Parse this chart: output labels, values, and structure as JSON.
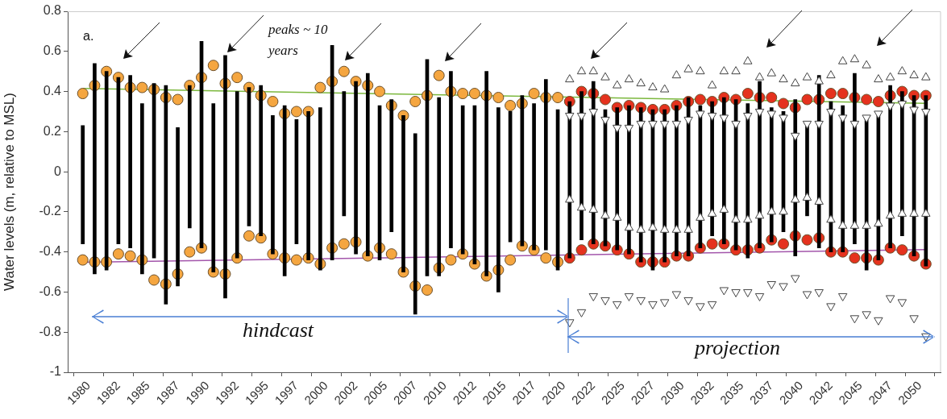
{
  "chart_data": {
    "type": "scatter",
    "ylabel": "Water levels (m, relative to MSL)",
    "annotations": [
      "a.",
      "peaks ~ 10 years",
      "hindcast",
      "projection"
    ],
    "x": [
      1979.5,
      1980.5,
      1981.5,
      1982.5,
      1983.5,
      1984.5,
      1985.5,
      1986.5,
      1987.5,
      1988.5,
      1989.5,
      1990.5,
      1991.5,
      1992.5,
      1993.5,
      1994.5,
      1995.5,
      1996.5,
      1997.5,
      1998.5,
      1999.5,
      2000.5,
      2001.5,
      2002.5,
      2003.5,
      2004.5,
      2005.5,
      2006.5,
      2007.5,
      2008.5,
      2009.5,
      2010.5,
      2011.5,
      2012.5,
      2013.5,
      2014.5,
      2015.5,
      2016.5,
      2017.5,
      2018.5,
      2019.5,
      2020.5,
      2021.5,
      2022.5,
      2023.5,
      2024.5,
      2025.5,
      2026.5,
      2027.5,
      2028.5,
      2029.5,
      2030.5,
      2031.5,
      2032.5,
      2033.5,
      2034.5,
      2035.5,
      2036.5,
      2037.5,
      2038.5,
      2039.5,
      2040.5,
      2041.5,
      2042.5,
      2043.5,
      2044.5,
      2045.5,
      2046.5,
      2047.5,
      2048.5,
      2049.5,
      2050.5
    ],
    "xlim": [
      1979.5,
      2050.5
    ],
    "xticks": [
      1980,
      {
        "value": 1982.5,
        "label": "1982"
      },
      1985,
      {
        "value": 1987.5,
        "label": "1987"
      },
      1990,
      {
        "value": 1992.5,
        "label": "1992"
      },
      1995,
      {
        "value": 1997.5,
        "label": "1997"
      },
      2000,
      {
        "value": 2002.5,
        "label": "2002"
      },
      2005,
      {
        "value": 2007.5,
        "label": "2007"
      },
      2010,
      {
        "value": 2012.5,
        "label": "2012"
      },
      2015,
      {
        "value": 2017.5,
        "label": "2017"
      },
      2020,
      {
        "value": 2022.5,
        "label": "2022"
      },
      2025,
      {
        "value": 2027.5,
        "label": "2027"
      },
      2030,
      {
        "value": 2032.5,
        "label": "2032"
      },
      2035,
      {
        "value": 2037.5,
        "label": "2037"
      },
      2040,
      {
        "value": 2042.5,
        "label": "2042"
      },
      2045,
      {
        "value": 2047.5,
        "label": "2047"
      },
      2050
    ],
    "ylim": [
      -1,
      0.8
    ],
    "yticks": [
      -1,
      -0.8,
      -0.6,
      -0.4,
      -0.2,
      0,
      0.2,
      0.4,
      0.6,
      0.8
    ],
    "grid": false,
    "legend": false,
    "series": [
      {
        "type": "bar",
        "color": "#000000",
        "base": [
          -0.36,
          -0.51,
          -0.49,
          -0.36,
          -0.38,
          -0.51,
          -0.43,
          -0.66,
          -0.57,
          -0.28,
          -0.38,
          -0.5,
          -0.63,
          -0.43,
          -0.27,
          -0.32,
          -0.41,
          -0.52,
          -0.36,
          -0.44,
          -0.49,
          -0.44,
          -0.22,
          -0.41,
          -0.42,
          -0.44,
          -0.3,
          -0.5,
          -0.71,
          -0.52,
          -0.52,
          -0.38,
          -0.41,
          -0.46,
          -0.52,
          -0.6,
          -0.35,
          -0.37,
          -0.39,
          -0.39,
          -0.49,
          -0.43,
          -0.34,
          -0.36,
          -0.37,
          -0.39,
          -0.41,
          -0.45,
          -0.49,
          -0.45,
          -0.42,
          -0.42,
          -0.38,
          -0.32,
          -0.36,
          -0.39,
          -0.43,
          -0.38,
          -0.35,
          -0.3,
          -0.42,
          -0.22,
          -0.38,
          -0.4,
          -0.4,
          -0.36,
          -0.49,
          -0.44,
          -0.38,
          -0.32,
          -0.42,
          -0.47
        ],
        "values": [
          0.59,
          1.05,
          0.99,
          0.83,
          0.86,
          0.85,
          0.87,
          1.09,
          0.79,
          0.71,
          1.03,
          0.84,
          1.21,
          0.83,
          0.69,
          0.75,
          0.69,
          0.85,
          0.62,
          0.74,
          0.81,
          1.07,
          0.62,
          0.86,
          0.91,
          0.77,
          0.66,
          0.78,
          0.9,
          1.08,
          0.89,
          0.88,
          0.74,
          0.79,
          1.02,
          0.92,
          0.65,
          0.75,
          0.73,
          0.85,
          0.8,
          0.78,
          0.74,
          0.81,
          0.68,
          0.71,
          0.74,
          0.77,
          0.8,
          0.76,
          0.75,
          0.79,
          0.71,
          0.67,
          0.73,
          0.75,
          0.77,
          0.83,
          0.67,
          0.6,
          0.78,
          0.46,
          0.86,
          0.75,
          0.73,
          0.85,
          0.77,
          0.73,
          0.81,
          0.72,
          0.8,
          0.85
        ]
      },
      {
        "type": "line",
        "color": "#7cb83e",
        "marker": "none",
        "x": [
          1979.5,
          2050.5
        ],
        "values": [
          0.415,
          0.341
        ]
      },
      {
        "type": "line",
        "color": "#a356ab",
        "marker": "none",
        "x": [
          1979.5,
          2050.5
        ],
        "values": [
          -0.452,
          -0.388
        ]
      },
      {
        "color": "#f5a640",
        "marker": "circle",
        "x": [
          1979.5,
          1980.5,
          1981.5,
          1982.5,
          1983.5,
          1984.5,
          1985.5,
          1986.5,
          1987.5,
          1988.5,
          1989.5,
          1990.5,
          1991.5,
          1992.5,
          1993.5,
          1994.5,
          1995.5,
          1996.5,
          1997.5,
          1998.5,
          1999.5,
          2000.5,
          2001.5,
          2002.5,
          2003.5,
          2004.5,
          2005.5,
          2006.5,
          2007.5,
          2008.5,
          2009.5,
          2010.5,
          2011.5,
          2012.5,
          2013.5,
          2014.5,
          2015.5,
          2016.5,
          2017.5,
          2018.5,
          2019.5
        ],
        "values": [
          0.39,
          0.43,
          0.5,
          0.47,
          0.42,
          0.42,
          0.41,
          0.37,
          0.36,
          0.43,
          0.47,
          0.53,
          0.44,
          0.47,
          0.42,
          0.38,
          0.35,
          0.29,
          0.3,
          0.3,
          0.42,
          0.45,
          0.5,
          0.45,
          0.43,
          0.4,
          0.33,
          0.28,
          0.35,
          0.38,
          0.48,
          0.4,
          0.39,
          0.39,
          0.38,
          0.37,
          0.33,
          0.34,
          0.39,
          0.37,
          0.37
        ]
      },
      {
        "color": "#f5a640",
        "marker": "circle",
        "x": [
          1979.5,
          1980.5,
          1981.5,
          1982.5,
          1983.5,
          1984.5,
          1985.5,
          1986.5,
          1987.5,
          1988.5,
          1989.5,
          1990.5,
          1991.5,
          1992.5,
          1993.5,
          1994.5,
          1995.5,
          1996.5,
          1997.5,
          1998.5,
          1999.5,
          2000.5,
          2001.5,
          2002.5,
          2003.5,
          2004.5,
          2005.5,
          2006.5,
          2007.5,
          2008.5,
          2009.5,
          2010.5,
          2011.5,
          2012.5,
          2013.5,
          2014.5,
          2015.5,
          2016.5,
          2017.5,
          2018.5,
          2019.5
        ],
        "values": [
          -0.44,
          -0.45,
          -0.45,
          -0.41,
          -0.42,
          -0.44,
          -0.54,
          -0.56,
          -0.51,
          -0.4,
          -0.38,
          -0.5,
          -0.51,
          -0.43,
          -0.32,
          -0.33,
          -0.41,
          -0.43,
          -0.44,
          -0.43,
          -0.46,
          -0.38,
          -0.36,
          -0.35,
          -0.42,
          -0.38,
          -0.41,
          -0.5,
          -0.57,
          -0.59,
          -0.48,
          -0.44,
          -0.41,
          -0.46,
          -0.52,
          -0.49,
          -0.44,
          -0.37,
          -0.39,
          -0.43,
          -0.45
        ]
      },
      {
        "color": "#e5321e",
        "marker": "circle",
        "x": [
          2020.5,
          2021.5,
          2022.5,
          2023.5,
          2024.5,
          2025.5,
          2026.5,
          2027.5,
          2028.5,
          2029.5,
          2030.5,
          2031.5,
          2032.5,
          2033.5,
          2034.5,
          2035.5,
          2036.5,
          2037.5,
          2038.5,
          2039.5,
          2040.5,
          2041.5,
          2042.5,
          2043.5,
          2044.5,
          2045.5,
          2046.5,
          2047.5,
          2048.5,
          2049.5,
          2050.5
        ],
        "values": [
          0.35,
          0.4,
          0.39,
          0.36,
          0.32,
          0.33,
          0.32,
          0.31,
          0.31,
          0.33,
          0.35,
          0.36,
          0.35,
          0.37,
          0.36,
          0.39,
          0.37,
          0.37,
          0.34,
          0.32,
          0.36,
          0.36,
          0.39,
          0.39,
          0.37,
          0.36,
          0.35,
          0.38,
          0.4,
          0.38,
          0.38
        ]
      },
      {
        "color": "#e5321e",
        "marker": "circle",
        "x": [
          2020.5,
          2021.5,
          2022.5,
          2023.5,
          2024.5,
          2025.5,
          2026.5,
          2027.5,
          2028.5,
          2029.5,
          2030.5,
          2031.5,
          2032.5,
          2033.5,
          2034.5,
          2035.5,
          2036.5,
          2037.5,
          2038.5,
          2039.5,
          2040.5,
          2041.5,
          2042.5,
          2043.5,
          2044.5,
          2045.5,
          2046.5,
          2047.5,
          2048.5,
          2049.5,
          2050.5
        ],
        "values": [
          -0.43,
          -0.39,
          -0.36,
          -0.37,
          -0.39,
          -0.41,
          -0.45,
          -0.45,
          -0.45,
          -0.42,
          -0.42,
          -0.38,
          -0.36,
          -0.36,
          -0.39,
          -0.39,
          -0.38,
          -0.34,
          -0.36,
          -0.32,
          -0.34,
          -0.33,
          -0.4,
          -0.4,
          -0.43,
          -0.43,
          -0.44,
          -0.38,
          -0.39,
          -0.42,
          -0.46
        ]
      },
      {
        "color": "#444444",
        "marker": "triangle",
        "x": [
          2020.5,
          2021.5,
          2022.5,
          2023.5,
          2024.5,
          2025.5,
          2026.5,
          2027.5,
          2028.5,
          2029.5,
          2030.5,
          2031.5,
          2032.5,
          2033.5,
          2034.5,
          2035.5,
          2036.5,
          2037.5,
          2038.5,
          2039.5,
          2040.5,
          2041.5,
          2042.5,
          2043.5,
          2044.5,
          2045.5,
          2046.5,
          2047.5,
          2048.5,
          2049.5,
          2050.5
        ],
        "values": [
          0.46,
          0.5,
          0.5,
          0.47,
          0.43,
          0.46,
          0.44,
          0.42,
          0.41,
          0.48,
          0.51,
          0.5,
          0.43,
          0.5,
          0.5,
          0.55,
          0.47,
          0.49,
          0.46,
          0.44,
          0.47,
          0.45,
          0.48,
          0.55,
          0.56,
          0.53,
          0.46,
          0.47,
          0.5,
          0.48,
          0.47
        ]
      },
      {
        "color": "#444444",
        "marker": "triangle_down",
        "x": [
          2020.5,
          2021.5,
          2022.5,
          2023.5,
          2024.5,
          2025.5,
          2026.5,
          2027.5,
          2028.5,
          2029.5,
          2030.5,
          2031.5,
          2032.5,
          2033.5,
          2034.5,
          2035.5,
          2036.5,
          2037.5,
          2038.5,
          2039.5,
          2040.5,
          2041.5,
          2042.5,
          2043.5,
          2044.5,
          2045.5,
          2046.5,
          2047.5,
          2048.5,
          2049.5,
          2050.5
        ],
        "values": [
          0.28,
          0.28,
          0.3,
          0.26,
          0.22,
          0.22,
          0.24,
          0.24,
          0.24,
          0.24,
          0.26,
          0.29,
          0.28,
          0.27,
          0.24,
          0.28,
          0.3,
          0.29,
          0.27,
          0.18,
          0.24,
          0.24,
          0.3,
          0.27,
          0.24,
          0.27,
          0.29,
          0.33,
          0.34,
          0.31,
          0.3
        ]
      },
      {
        "color": "#444444",
        "marker": "triangle",
        "x": [
          2020.5,
          2021.5,
          2022.5,
          2023.5,
          2024.5,
          2025.5,
          2026.5,
          2027.5,
          2028.5,
          2029.5,
          2030.5,
          2031.5,
          2032.5,
          2033.5,
          2034.5,
          2035.5,
          2036.5,
          2037.5,
          2038.5,
          2039.5,
          2040.5,
          2041.5,
          2042.5,
          2043.5,
          2044.5,
          2045.5,
          2046.5,
          2047.5,
          2048.5,
          2049.5,
          2050.5
        ],
        "values": [
          -0.14,
          -0.18,
          -0.19,
          -0.22,
          -0.23,
          -0.28,
          -0.29,
          -0.28,
          -0.29,
          -0.29,
          -0.29,
          -0.23,
          -0.21,
          -0.19,
          -0.24,
          -0.24,
          -0.22,
          -0.2,
          -0.2,
          -0.14,
          -0.13,
          -0.15,
          -0.24,
          -0.27,
          -0.27,
          -0.27,
          -0.26,
          -0.22,
          -0.21,
          -0.21,
          -0.21
        ]
      },
      {
        "color": "#444444",
        "marker": "triangle_down",
        "x": [
          2020.5,
          2021.5,
          2022.5,
          2023.5,
          2024.5,
          2025.5,
          2026.5,
          2027.5,
          2028.5,
          2029.5,
          2030.5,
          2031.5,
          2032.5,
          2033.5,
          2034.5,
          2035.5,
          2036.5,
          2037.5,
          2038.5,
          2039.5,
          2040.5,
          2041.5,
          2042.5,
          2043.5,
          2044.5,
          2045.5,
          2046.5,
          2047.5,
          2048.5,
          2049.5,
          2050.5
        ],
        "values": [
          -0.75,
          -0.7,
          -0.62,
          -0.64,
          -0.66,
          -0.62,
          -0.64,
          -0.66,
          -0.65,
          -0.61,
          -0.64,
          -0.67,
          -0.66,
          -0.59,
          -0.6,
          -0.6,
          -0.62,
          -0.56,
          -0.57,
          -0.53,
          -0.61,
          -0.6,
          -0.67,
          -0.62,
          -0.73,
          -0.71,
          -0.74,
          -0.63,
          -0.65,
          -0.73,
          -0.82
        ]
      }
    ]
  }
}
